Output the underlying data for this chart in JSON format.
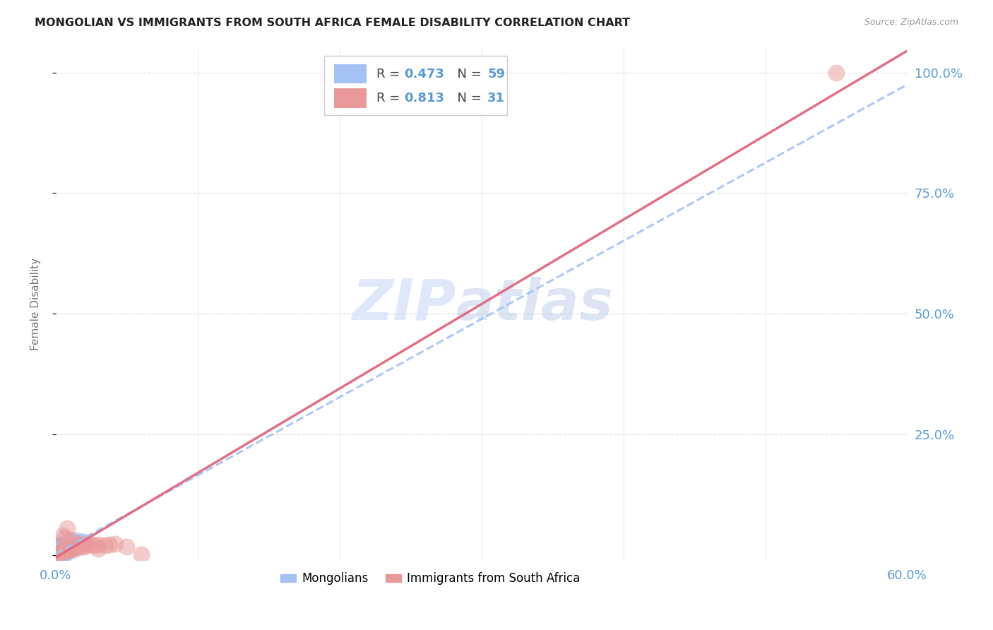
{
  "title": "MONGOLIAN VS IMMIGRANTS FROM SOUTH AFRICA FEMALE DISABILITY CORRELATION CHART",
  "source": "Source: ZipAtlas.com",
  "ylabel": "Female Disability",
  "xlim": [
    0.0,
    0.6
  ],
  "ylim": [
    -0.01,
    1.05
  ],
  "yticks": [
    0.0,
    0.25,
    0.5,
    0.75,
    1.0
  ],
  "yticklabels": [
    "",
    "25.0%",
    "50.0%",
    "75.0%",
    "100.0%"
  ],
  "xticks": [
    0.0,
    0.1,
    0.2,
    0.3,
    0.4,
    0.5,
    0.6
  ],
  "xticklabels": [
    "0.0%",
    "",
    "",
    "",
    "",
    "",
    "60.0%"
  ],
  "watermark_zip": "ZIP",
  "watermark_atlas": "atlas",
  "mongolian_color": "#a4c2f4",
  "southafrica_color": "#ea9999",
  "background_color": "#ffffff",
  "grid_color": "#dddddd",
  "mongolian_line_color": "#a4c2f4",
  "southafrica_line_color": "#e06880",
  "mongolian_line_slope": 1.62,
  "mongolian_line_intercept": 0.003,
  "southafrica_line_slope": 1.75,
  "southafrica_line_intercept": -0.005,
  "mongolian_points": [
    [
      0.001,
      0.005
    ],
    [
      0.002,
      0.004
    ],
    [
      0.002,
      0.006
    ],
    [
      0.002,
      0.008
    ],
    [
      0.002,
      0.01
    ],
    [
      0.002,
      0.012
    ],
    [
      0.002,
      0.015
    ],
    [
      0.002,
      0.02
    ],
    [
      0.003,
      0.003
    ],
    [
      0.003,
      0.005
    ],
    [
      0.003,
      0.006
    ],
    [
      0.003,
      0.007
    ],
    [
      0.003,
      0.009
    ],
    [
      0.003,
      0.01
    ],
    [
      0.003,
      0.012
    ],
    [
      0.003,
      0.014
    ],
    [
      0.003,
      0.016
    ],
    [
      0.003,
      0.018
    ],
    [
      0.003,
      0.022
    ],
    [
      0.004,
      0.004
    ],
    [
      0.004,
      0.006
    ],
    [
      0.004,
      0.008
    ],
    [
      0.004,
      0.01
    ],
    [
      0.004,
      0.012
    ],
    [
      0.004,
      0.014
    ],
    [
      0.004,
      0.016
    ],
    [
      0.004,
      0.018
    ],
    [
      0.005,
      0.003
    ],
    [
      0.005,
      0.005
    ],
    [
      0.005,
      0.007
    ],
    [
      0.005,
      0.009
    ],
    [
      0.005,
      0.011
    ],
    [
      0.005,
      0.013
    ],
    [
      0.005,
      0.015
    ],
    [
      0.005,
      0.017
    ],
    [
      0.006,
      0.004
    ],
    [
      0.006,
      0.006
    ],
    [
      0.006,
      0.008
    ],
    [
      0.006,
      0.01
    ],
    [
      0.006,
      0.012
    ],
    [
      0.006,
      0.014
    ],
    [
      0.007,
      0.005
    ],
    [
      0.007,
      0.007
    ],
    [
      0.007,
      0.009
    ],
    [
      0.007,
      0.012
    ],
    [
      0.008,
      0.006
    ],
    [
      0.008,
      0.01
    ],
    [
      0.008,
      0.013
    ],
    [
      0.009,
      0.01
    ],
    [
      0.009,
      0.013
    ],
    [
      0.01,
      0.01
    ],
    [
      0.01,
      0.014
    ],
    [
      0.012,
      0.014
    ],
    [
      0.015,
      0.03
    ],
    [
      0.018,
      0.028
    ],
    [
      0.02,
      0.027
    ],
    [
      0.012,
      0.03
    ],
    [
      0.002,
      0.001
    ],
    [
      0.003,
      0.001
    ]
  ],
  "southafrica_points": [
    [
      0.002,
      0.003
    ],
    [
      0.003,
      0.005
    ],
    [
      0.004,
      0.005
    ],
    [
      0.005,
      0.008
    ],
    [
      0.005,
      0.04
    ],
    [
      0.006,
      0.01
    ],
    [
      0.006,
      0.035
    ],
    [
      0.007,
      0.01
    ],
    [
      0.008,
      0.01
    ],
    [
      0.008,
      0.012
    ],
    [
      0.008,
      0.055
    ],
    [
      0.01,
      0.012
    ],
    [
      0.01,
      0.032
    ],
    [
      0.012,
      0.012
    ],
    [
      0.015,
      0.015
    ],
    [
      0.015,
      0.02
    ],
    [
      0.015,
      0.025
    ],
    [
      0.018,
      0.018
    ],
    [
      0.02,
      0.018
    ],
    [
      0.02,
      0.023
    ],
    [
      0.022,
      0.02
    ],
    [
      0.025,
      0.022
    ],
    [
      0.028,
      0.02
    ],
    [
      0.03,
      0.022
    ],
    [
      0.03,
      0.013
    ],
    [
      0.035,
      0.02
    ],
    [
      0.038,
      0.022
    ],
    [
      0.042,
      0.023
    ],
    [
      0.05,
      0.017
    ],
    [
      0.06,
      0.001
    ],
    [
      0.55,
      1.0
    ]
  ]
}
